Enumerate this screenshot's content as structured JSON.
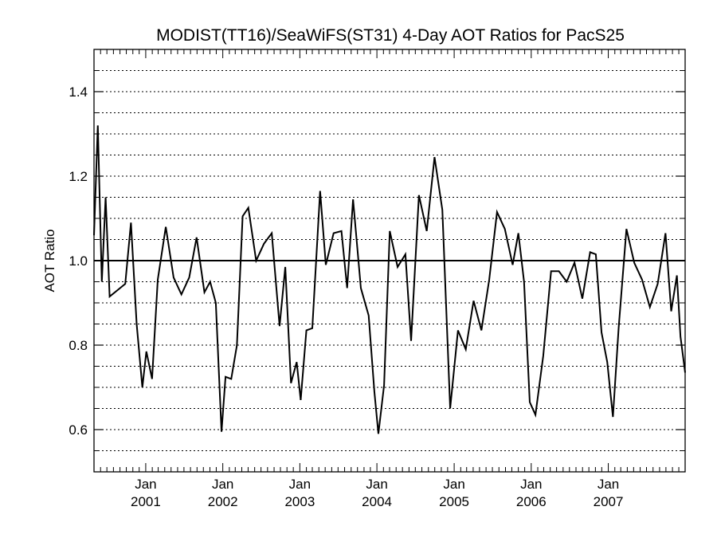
{
  "chart_data": {
    "type": "line",
    "title": "MODIST(TT16)/SeaWiFS(ST31) 4-Day AOT Ratios for PacS25",
    "xlabel": "",
    "ylabel": "AOT Ratio",
    "ylim": [
      0.5,
      1.5
    ],
    "xlim": [
      "2000-05-01",
      "2007-12-31"
    ],
    "grid": true,
    "reference_line": 1.0,
    "y_ticks": [
      0.6,
      0.8,
      1.0,
      1.2,
      1.4
    ],
    "y_tick_labels": [
      "0.6",
      "0.8",
      "1.0",
      "1.2",
      "1.4"
    ],
    "y_gridlines": [
      0.55,
      0.6,
      0.65,
      0.7,
      0.75,
      0.8,
      0.85,
      0.9,
      0.95,
      1.05,
      1.1,
      1.15,
      1.2,
      1.25,
      1.3,
      1.35,
      1.4,
      1.45
    ],
    "x_ticks": [
      {
        "date": "2001-01-01",
        "month": "Jan",
        "year": "2001"
      },
      {
        "date": "2002-01-01",
        "month": "Jan",
        "year": "2002"
      },
      {
        "date": "2003-01-01",
        "month": "Jan",
        "year": "2003"
      },
      {
        "date": "2004-01-01",
        "month": "Jan",
        "year": "2004"
      },
      {
        "date": "2005-01-01",
        "month": "Jan",
        "year": "2005"
      },
      {
        "date": "2006-01-01",
        "month": "Jan",
        "year": "2006"
      },
      {
        "date": "2007-01-01",
        "month": "Jan",
        "year": "2007"
      }
    ],
    "series": [
      {
        "points": [
          [
            "2000-05-01",
            1.06
          ],
          [
            "2000-05-19",
            1.32
          ],
          [
            "2000-06-07",
            0.95
          ],
          [
            "2000-06-25",
            1.15
          ],
          [
            "2000-07-14",
            0.915
          ],
          [
            "2000-08-20",
            0.93
          ],
          [
            "2000-09-26",
            0.945
          ],
          [
            "2000-10-23",
            1.09
          ],
          [
            "2000-11-19",
            0.85
          ],
          [
            "2000-12-16",
            0.7
          ],
          [
            "2001-01-04",
            0.785
          ],
          [
            "2001-01-31",
            0.72
          ],
          [
            "2001-02-27",
            0.955
          ],
          [
            "2001-04-06",
            1.08
          ],
          [
            "2001-05-13",
            0.96
          ],
          [
            "2001-06-19",
            0.92
          ],
          [
            "2001-07-26",
            0.96
          ],
          [
            "2001-08-30",
            1.055
          ],
          [
            "2001-10-06",
            0.925
          ],
          [
            "2001-11-02",
            0.95
          ],
          [
            "2001-11-29",
            0.9
          ],
          [
            "2001-12-26",
            0.595
          ],
          [
            "2002-01-14",
            0.725
          ],
          [
            "2002-02-10",
            0.72
          ],
          [
            "2002-03-09",
            0.8
          ],
          [
            "2002-04-05",
            1.105
          ],
          [
            "2002-05-02",
            1.125
          ],
          [
            "2002-06-08",
            1.0
          ],
          [
            "2002-07-15",
            1.04
          ],
          [
            "2002-08-21",
            1.065
          ],
          [
            "2002-09-27",
            0.845
          ],
          [
            "2002-10-24",
            0.985
          ],
          [
            "2002-11-20",
            0.71
          ],
          [
            "2002-12-17",
            0.76
          ],
          [
            "2003-01-05",
            0.67
          ],
          [
            "2003-02-01",
            0.835
          ],
          [
            "2003-03-01",
            0.84
          ],
          [
            "2003-04-07",
            1.165
          ],
          [
            "2003-05-04",
            0.99
          ],
          [
            "2003-06-10",
            1.065
          ],
          [
            "2003-07-17",
            1.07
          ],
          [
            "2003-08-13",
            0.935
          ],
          [
            "2003-09-10",
            1.145
          ],
          [
            "2003-10-17",
            0.935
          ],
          [
            "2003-11-23",
            0.87
          ],
          [
            "2003-12-20",
            0.69
          ],
          [
            "2004-01-08",
            0.59
          ],
          [
            "2004-02-04",
            0.705
          ],
          [
            "2004-03-02",
            1.07
          ],
          [
            "2004-04-08",
            0.985
          ],
          [
            "2004-05-15",
            1.015
          ],
          [
            "2004-06-11",
            0.81
          ],
          [
            "2004-07-18",
            1.155
          ],
          [
            "2004-08-24",
            1.07
          ],
          [
            "2004-09-30",
            1.245
          ],
          [
            "2004-11-06",
            1.12
          ],
          [
            "2004-12-13",
            0.65
          ],
          [
            "2005-01-19",
            0.835
          ],
          [
            "2005-02-25",
            0.79
          ],
          [
            "2005-04-03",
            0.905
          ],
          [
            "2005-05-10",
            0.835
          ],
          [
            "2005-06-16",
            0.955
          ],
          [
            "2005-07-23",
            1.115
          ],
          [
            "2005-08-29",
            1.075
          ],
          [
            "2005-10-05",
            0.99
          ],
          [
            "2005-11-01",
            1.065
          ],
          [
            "2005-11-28",
            0.95
          ],
          [
            "2005-12-25",
            0.665
          ],
          [
            "2006-01-21",
            0.635
          ],
          [
            "2006-02-27",
            0.775
          ],
          [
            "2006-04-05",
            0.975
          ],
          [
            "2006-05-12",
            0.975
          ],
          [
            "2006-06-18",
            0.95
          ],
          [
            "2006-07-25",
            0.995
          ],
          [
            "2006-08-31",
            0.91
          ],
          [
            "2006-10-07",
            1.02
          ],
          [
            "2006-11-03",
            1.015
          ],
          [
            "2006-11-30",
            0.83
          ],
          [
            "2006-12-27",
            0.76
          ],
          [
            "2007-01-23",
            0.63
          ],
          [
            "2007-02-19",
            0.84
          ],
          [
            "2007-03-28",
            1.075
          ],
          [
            "2007-05-04",
            0.995
          ],
          [
            "2007-06-10",
            0.955
          ],
          [
            "2007-07-17",
            0.89
          ],
          [
            "2007-08-23",
            0.945
          ],
          [
            "2007-09-29",
            1.065
          ],
          [
            "2007-10-26",
            0.88
          ],
          [
            "2007-11-22",
            0.965
          ],
          [
            "2007-12-09",
            0.82
          ],
          [
            "2007-12-31",
            0.735
          ]
        ]
      }
    ]
  }
}
